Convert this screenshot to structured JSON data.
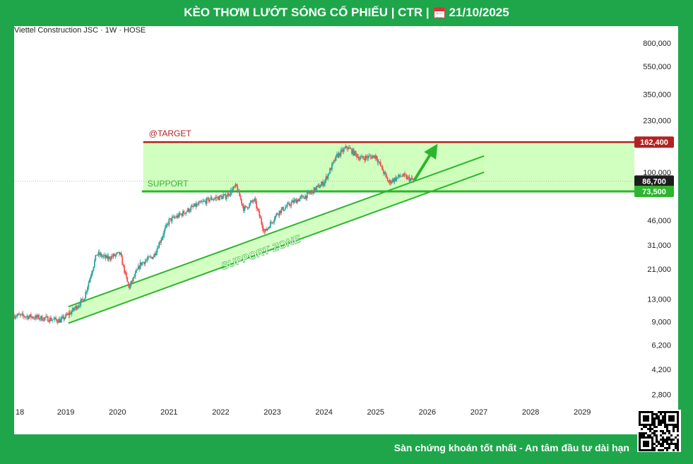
{
  "header": {
    "title_prefix": "KÈO THƠM LƯỚT SÓNG CỔ PHIẾU | CTR |",
    "date": "21/10/2025",
    "calendar_icon": "calendar-icon"
  },
  "symbol": {
    "label": "Viettel Construction JSC · 1W · HOSE"
  },
  "footer": {
    "slogan": "Sàn chứng khoán tốt nhất - An tâm đầu tư dài hạn",
    "qr_icon": "qr-code-icon"
  },
  "colors": {
    "bg": "#1fa64b",
    "target": "#b22222",
    "support": "#2db52d",
    "zone_fill": "#ccffb8",
    "up": "#26a69a",
    "down": "#ef5350"
  },
  "chart_data": {
    "type": "candlestick",
    "title": "Viettel Construction JSC · 1W · HOSE",
    "y_scale": "log",
    "ylim": [
      2400,
      1050000
    ],
    "y_ticks": [
      {
        "value": 800000,
        "label": "800,000"
      },
      {
        "value": 550000,
        "label": "550,000"
      },
      {
        "value": 350000,
        "label": "350,000"
      },
      {
        "value": 230000,
        "label": "230,000"
      },
      {
        "value": 100000,
        "label": "100,000"
      },
      {
        "value": 46000,
        "label": "46,000"
      },
      {
        "value": 31000,
        "label": "31,000"
      },
      {
        "value": 21000,
        "label": "21,000"
      },
      {
        "value": 13000,
        "label": "13,000"
      },
      {
        "value": 9000,
        "label": "9,000"
      },
      {
        "value": 6200,
        "label": "6,200"
      },
      {
        "value": 4200,
        "label": "4,200"
      },
      {
        "value": 2800,
        "label": "2,800"
      }
    ],
    "x_range": [
      2018.0,
      2029.9
    ],
    "x_ticks": [
      {
        "year": 2018,
        "label": "18"
      },
      {
        "year": 2019,
        "label": "2019"
      },
      {
        "year": 2020,
        "label": "2020"
      },
      {
        "year": 2021,
        "label": "2021"
      },
      {
        "year": 2022,
        "label": "2022"
      },
      {
        "year": 2023,
        "label": "2023"
      },
      {
        "year": 2024,
        "label": "2024"
      },
      {
        "year": 2025,
        "label": "2025"
      },
      {
        "year": 2026,
        "label": "2026"
      },
      {
        "year": 2027,
        "label": "2027"
      },
      {
        "year": 2028,
        "label": "2028"
      },
      {
        "year": 2029,
        "label": "2029"
      }
    ],
    "price_path": [
      [
        2018.0,
        10000
      ],
      [
        2018.3,
        9800
      ],
      [
        2018.6,
        9500
      ],
      [
        2018.9,
        9200
      ],
      [
        2019.1,
        10500
      ],
      [
        2019.35,
        13000
      ],
      [
        2019.6,
        27000
      ],
      [
        2019.8,
        25000
      ],
      [
        2020.05,
        27000
      ],
      [
        2020.22,
        15500
      ],
      [
        2020.45,
        23000
      ],
      [
        2020.7,
        26000
      ],
      [
        2021.0,
        46000
      ],
      [
        2021.2,
        50000
      ],
      [
        2021.5,
        58000
      ],
      [
        2021.8,
        65000
      ],
      [
        2022.1,
        68000
      ],
      [
        2022.3,
        80000
      ],
      [
        2022.45,
        55000
      ],
      [
        2022.65,
        64000
      ],
      [
        2022.85,
        38000
      ],
      [
        2023.1,
        52000
      ],
      [
        2023.4,
        62000
      ],
      [
        2023.7,
        70000
      ],
      [
        2024.0,
        85000
      ],
      [
        2024.25,
        130000
      ],
      [
        2024.45,
        150000
      ],
      [
        2024.7,
        125000
      ],
      [
        2025.0,
        130000
      ],
      [
        2025.25,
        85000
      ],
      [
        2025.5,
        95000
      ],
      [
        2025.75,
        86700
      ]
    ],
    "last_price": 86700,
    "target": {
      "label": "@TARGET",
      "value": 162400,
      "price_label": "162,400",
      "from_year": 2020.5
    },
    "support": {
      "label": "SUPPORT",
      "value": 73500,
      "price_label": "73,500",
      "from_year": 2020.5
    },
    "current_price_label": "86,700",
    "box_top_value": 162400,
    "box_bottom_value": 73500,
    "channel": {
      "label": "SUPPORT ZONE",
      "lower": [
        [
          2019.05,
          8800
        ],
        [
          2027.1,
          100000
        ]
      ],
      "upper": [
        [
          2019.05,
          11500
        ],
        [
          2027.1,
          130000
        ]
      ]
    },
    "projection_arrow": {
      "from": [
        2025.75,
        88000
      ],
      "to": [
        2026.2,
        158000
      ]
    }
  }
}
